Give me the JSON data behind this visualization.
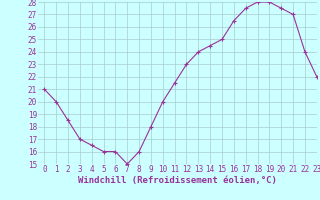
{
  "x": [
    0,
    1,
    2,
    3,
    4,
    5,
    6,
    7,
    8,
    9,
    10,
    11,
    12,
    13,
    14,
    15,
    16,
    17,
    18,
    19,
    20,
    21,
    22,
    23
  ],
  "y": [
    21,
    20,
    18.5,
    17,
    16.5,
    16,
    16,
    15,
    16,
    18,
    20,
    21.5,
    23,
    24,
    24.5,
    25,
    26.5,
    27.5,
    28,
    28,
    27.5,
    27,
    24,
    22
  ],
  "line_color": "#993399",
  "marker": "+",
  "bg_color": "#ccffff",
  "grid_color": "#aacccc",
  "xlabel": "Windchill (Refroidissement éolien,°C)",
  "ylim": [
    15,
    28
  ],
  "xlim": [
    -0.5,
    23
  ],
  "yticks": [
    15,
    16,
    17,
    18,
    19,
    20,
    21,
    22,
    23,
    24,
    25,
    26,
    27,
    28
  ],
  "xticks": [
    0,
    1,
    2,
    3,
    4,
    5,
    6,
    7,
    8,
    9,
    10,
    11,
    12,
    13,
    14,
    15,
    16,
    17,
    18,
    19,
    20,
    21,
    22,
    23
  ],
  "tick_color": "#993399",
  "label_fontsize": 6.5,
  "tick_fontsize": 5.5
}
